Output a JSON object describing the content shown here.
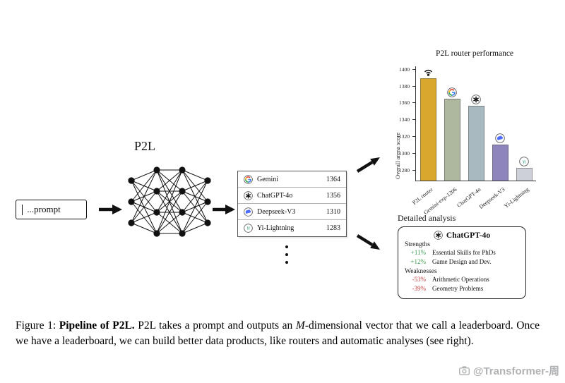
{
  "figure": {
    "prompt": {
      "label": "...prompt"
    },
    "network": {
      "label": "P2L"
    },
    "leaderboard": {
      "rows": [
        {
          "icon": "gemini",
          "name": "Gemini",
          "score": "1364"
        },
        {
          "icon": "openai",
          "name": "ChatGPT-4o",
          "score": "1356"
        },
        {
          "icon": "deepseek",
          "name": "Deepseek-V3",
          "score": "1310"
        },
        {
          "icon": "yi",
          "name": "Yi-Lightning",
          "score": "1283"
        }
      ]
    },
    "analysis": {
      "section_title": "Detailed analysis",
      "model_icon": "openai",
      "model_name": "ChatGPT-4o",
      "strengths_label": "Strengths",
      "weaknesses_label": "Weaknesses",
      "strengths": [
        {
          "delta": "+11%",
          "label": "Essential Skills for PhDs"
        },
        {
          "delta": "+12%",
          "label": "Game Design and Dev."
        }
      ],
      "weaknesses": [
        {
          "delta": "-53%",
          "label": "Arithmetic Operations"
        },
        {
          "delta": "-39%",
          "label": "Geometry Problems"
        }
      ],
      "positive_color": "#3a9a4e",
      "negative_color": "#c43c3c"
    },
    "caption": {
      "figure_label": "Figure 1: ",
      "title_bold": "Pipeline of P2L.",
      "body_1": " P2L takes a prompt and outputs an ",
      "math_var": "M",
      "body_2": "-dimensional vector that we call a leaderboard. Once we have a leaderboard, we can build better data products, like routers and automatic analyses (see right)."
    },
    "watermark": "@Transformer-周"
  },
  "chart_data": {
    "type": "bar",
    "title": "P2L router performance",
    "ylabel": "Overall arena score",
    "xlabel": "",
    "categories": [
      "P2L router",
      "Gemini-exp-1206",
      "ChatGPT-4o",
      "Deepseek-V3",
      "Yi-Lightning"
    ],
    "values": [
      1390,
      1365,
      1357,
      1311,
      1283
    ],
    "icons": [
      "router",
      "gemini",
      "openai",
      "deepseek",
      "yi"
    ],
    "bar_colors": [
      "#d9a62e",
      "#aeb89e",
      "#a8bac0",
      "#8e85bd",
      "#cdd0d6"
    ],
    "ylim": [
      1268,
      1404
    ],
    "yticks": [
      1280,
      1300,
      1320,
      1340,
      1360,
      1380,
      1400
    ],
    "grid": false,
    "legend": false
  }
}
